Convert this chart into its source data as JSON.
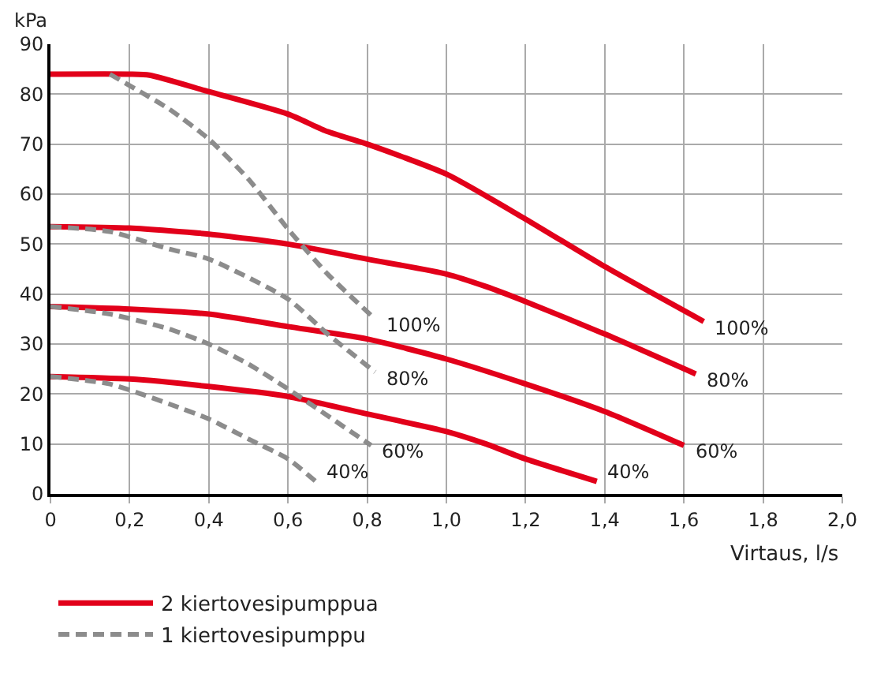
{
  "chart_data": {
    "type": "line",
    "xlabel": "Virtaus, l/s",
    "ylabel": "kPa",
    "xlim": [
      0,
      2.0
    ],
    "xticks": [
      {
        "value": 0,
        "label": "0"
      },
      {
        "value": 0.2,
        "label": "0,2"
      },
      {
        "value": 0.4,
        "label": "0,4"
      },
      {
        "value": 0.6,
        "label": "0,6"
      },
      {
        "value": 0.8,
        "label": "0,8"
      },
      {
        "value": 1.0,
        "label": "1,0"
      },
      {
        "value": 1.2,
        "label": "1,2"
      },
      {
        "value": 1.4,
        "label": "1,4"
      },
      {
        "value": 1.6,
        "label": "1,6"
      },
      {
        "value": 1.8,
        "label": "1,8"
      },
      {
        "value": 2.0,
        "label": "2,0"
      }
    ],
    "ylim": [
      0,
      90
    ],
    "yticks": [
      0,
      10,
      20,
      30,
      40,
      50,
      60,
      70,
      80,
      90
    ],
    "grid": true,
    "legend": "bottom left",
    "marker": "none",
    "series": [
      {
        "name": "2 kiertovesipumppua",
        "color": "#e2001a",
        "line_style": "solid",
        "x": [
          0,
          0.2,
          0.25,
          0.4,
          0.6,
          0.7,
          0.8,
          1.0,
          1.2,
          1.4,
          1.65
        ],
        "values": [
          84,
          84,
          83.8,
          80.5,
          76,
          72.5,
          70,
          64,
          55,
          45.5,
          34.5
        ]
      },
      {
        "color": "#e2001a",
        "line_style": "solid",
        "x": [
          0,
          0.2,
          0.4,
          0.6,
          0.8,
          1.0,
          1.1,
          1.2,
          1.4,
          1.63
        ],
        "values": [
          53.5,
          53.2,
          52,
          50,
          47,
          44,
          41.5,
          38.5,
          32,
          24
        ]
      },
      {
        "color": "#e2001a",
        "line_style": "solid",
        "x": [
          0,
          0.2,
          0.4,
          0.6,
          0.8,
          1.0,
          1.2,
          1.4,
          1.6
        ],
        "values": [
          37.5,
          37,
          36,
          33.5,
          31,
          27,
          22,
          16.5,
          9.7
        ]
      },
      {
        "color": "#e2001a",
        "line_style": "solid",
        "x": [
          0,
          0.2,
          0.4,
          0.6,
          0.8,
          1.0,
          1.1,
          1.2,
          1.38
        ],
        "values": [
          23.5,
          23,
          21.5,
          19.5,
          16,
          12.5,
          10,
          7,
          2.5
        ]
      },
      {
        "name": "1 kiertovesipumppu",
        "color": "#8c8c8c",
        "line_style": "dashed",
        "x": [
          0.15,
          0.3,
          0.4,
          0.5,
          0.6,
          0.7,
          0.82
        ],
        "values": [
          84,
          77,
          71,
          63,
          53,
          44,
          35
        ]
      },
      {
        "color": "#8c8c8c",
        "line_style": "dashed",
        "x": [
          0,
          0.15,
          0.3,
          0.4,
          0.6,
          0.7,
          0.82
        ],
        "values": [
          53.5,
          52.5,
          49,
          47,
          39,
          32,
          24.4
        ]
      },
      {
        "color": "#8c8c8c",
        "line_style": "dashed",
        "x": [
          0,
          0.15,
          0.3,
          0.4,
          0.5,
          0.6,
          0.81
        ],
        "values": [
          37.5,
          36,
          33,
          30,
          26,
          21,
          9.7
        ]
      },
      {
        "color": "#8c8c8c",
        "line_style": "dashed",
        "x": [
          0,
          0.15,
          0.3,
          0.4,
          0.5,
          0.6,
          0.67
        ],
        "values": [
          23.5,
          22,
          18,
          15,
          11,
          7,
          2.5
        ]
      }
    ],
    "annotations": [
      {
        "text": "100%",
        "x": 0.82,
        "y": 35
      },
      {
        "text": "80%",
        "x": 0.82,
        "y": 24.4
      },
      {
        "text": "60%",
        "x": 0.81,
        "y": 9.7
      },
      {
        "text": "40%",
        "x": 0.67,
        "y": 2.5
      },
      {
        "text": "100%",
        "x": 1.65,
        "y": 34.5
      },
      {
        "text": "80%",
        "x": 1.63,
        "y": 24
      },
      {
        "text": "60%",
        "x": 1.6,
        "y": 9.7
      },
      {
        "text": "40%",
        "x": 1.38,
        "y": 2.5
      }
    ]
  }
}
